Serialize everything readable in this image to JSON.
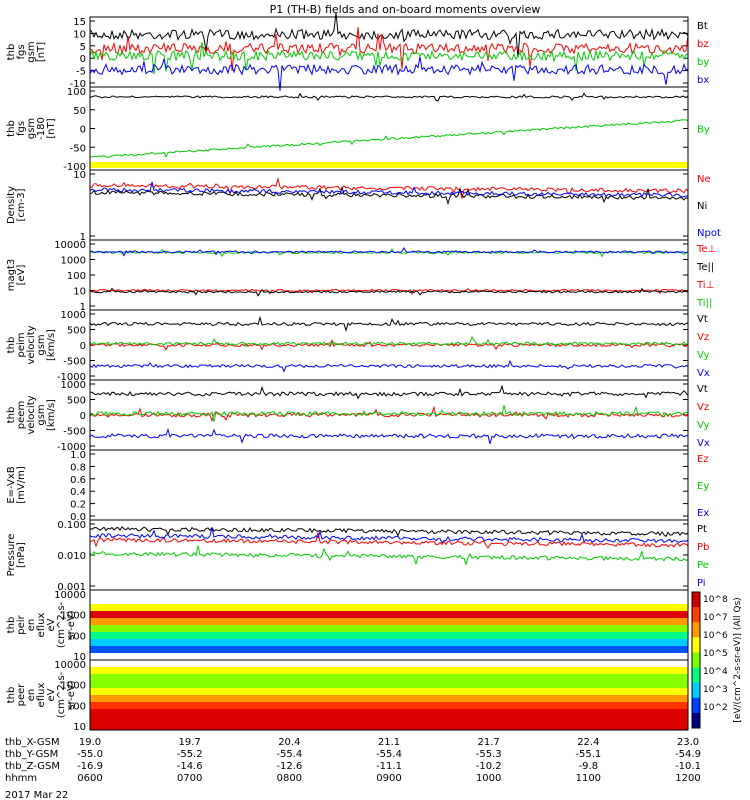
{
  "title": "P1 (TH-B) fields and on-board moments overview",
  "panels": [
    {
      "id": "fgs",
      "ylabel": [
        "thb",
        "fgs",
        "gsm",
        "[nT]"
      ],
      "ticks": [
        "15",
        "10",
        "5",
        "0",
        "-5",
        "-10"
      ],
      "legend": [
        {
          "text": "Bt",
          "color": "#000000"
        },
        {
          "text": "bz",
          "color": "#ff0000"
        },
        {
          "text": "by",
          "color": "#00cc00"
        },
        {
          "text": "bx",
          "color": "#0000ff"
        }
      ]
    },
    {
      "id": "fgs2",
      "ylabel": [
        "thb",
        "fgs",
        "gsm",
        "-180",
        "[nT]"
      ],
      "ticks": [
        "100",
        "50",
        "0",
        "-50",
        "-100"
      ],
      "legend": [
        {
          "text": "By",
          "color": "#00cc00"
        }
      ]
    },
    {
      "id": "density",
      "ylabel": [
        "Density",
        "[cm-3]"
      ],
      "ticks": [
        "10",
        "1"
      ],
      "legend": [
        {
          "text": "Ne",
          "color": "#ff0000"
        },
        {
          "text": "Ni",
          "color": "#000000"
        },
        {
          "text": "Npot",
          "color": "#0000ff"
        }
      ]
    },
    {
      "id": "temp",
      "ylabel": [
        "magt3",
        "[eV]"
      ],
      "ticks": [
        "10000",
        "1000",
        "100",
        "10",
        "1"
      ],
      "legend": [
        {
          "text": "Te⊥",
          "color": "#ff0000"
        },
        {
          "text": "Te||",
          "color": "#000000"
        },
        {
          "text": "Ti⊥",
          "color": "#ff0000"
        },
        {
          "text": "Ti||",
          "color": "#00cc00"
        }
      ]
    },
    {
      "id": "peim",
      "ylabel": [
        "thb",
        "peim",
        "velocity",
        "gsm",
        "[km/s]"
      ],
      "ticks": [
        "1000",
        "500",
        "0",
        "-500",
        "-1000"
      ],
      "legend": [
        {
          "text": "Vt",
          "color": "#000000"
        },
        {
          "text": "Vz",
          "color": "#ff0000"
        },
        {
          "text": "Vy",
          "color": "#00cc00"
        },
        {
          "text": "Vx",
          "color": "#0000ff"
        }
      ]
    },
    {
      "id": "peem",
      "ylabel": [
        "thb",
        "peem",
        "velocity",
        "gsm",
        "[km/s]"
      ],
      "ticks": [
        "1000",
        "500",
        "0",
        "-500",
        "-1000"
      ],
      "legend": [
        {
          "text": "Vt",
          "color": "#000000"
        },
        {
          "text": "Vz",
          "color": "#ff0000"
        },
        {
          "text": "Vy",
          "color": "#00cc00"
        },
        {
          "text": "Vx",
          "color": "#0000ff"
        }
      ]
    },
    {
      "id": "efield",
      "ylabel": [
        "E=-VxB",
        "[mV/m]"
      ],
      "ticks": [
        "1.0",
        "0.8",
        "0.6",
        "0.4",
        "0.2",
        "0.0"
      ],
      "legend": [
        {
          "text": "Ez",
          "color": "#ff0000"
        },
        {
          "text": "Ey",
          "color": "#00cc00"
        },
        {
          "text": "Ex",
          "color": "#0000ff"
        }
      ]
    },
    {
      "id": "pressure",
      "ylabel": [
        "Pressure",
        "[nPa]"
      ],
      "ticks": [
        "0.100",
        "0.010",
        "0.001"
      ],
      "legend": [
        {
          "text": "Pt",
          "color": "#000000"
        },
        {
          "text": "Pb",
          "color": "#ff0000"
        },
        {
          "text": "Pe",
          "color": "#00cc00"
        },
        {
          "text": "Pi",
          "color": "#0000ff"
        }
      ]
    },
    {
      "id": "peir",
      "ylabel": [
        "thb",
        "peir",
        "en",
        "eflux",
        "eV",
        "(cm^2-s-",
        "sr-eV)"
      ],
      "ticks": [
        "10000",
        "1000",
        "100",
        "10"
      ],
      "legend": []
    },
    {
      "id": "peer",
      "ylabel": [
        "thb",
        "peer",
        "en",
        "eflux",
        "eV",
        "(cm^2-s-",
        "sr-eV)"
      ],
      "ticks": [
        "10000",
        "1000",
        "100",
        "10"
      ],
      "legend": []
    }
  ],
  "colorbar": {
    "ticks": [
      "10^8",
      "10^7",
      "10^6",
      "10^5",
      "10^4",
      "10^3",
      "10^2"
    ],
    "label": "[eV/(cm^2-s-sr-eV)] (All Qs)"
  },
  "xaxis": {
    "rows": [
      {
        "label": "thb_X-GSM",
        "values": [
          "19.0",
          "19.7",
          "20.4",
          "21.1",
          "21.7",
          "22.4",
          "23.0"
        ]
      },
      {
        "label": "thb_Y-GSM",
        "values": [
          "-55.0",
          "-55.2",
          "-55.4",
          "-55.4",
          "-55.3",
          "-55.1",
          "-54.9"
        ]
      },
      {
        "label": "thb_Z-GSM",
        "values": [
          "-16.9",
          "-14.6",
          "-12.6",
          "-11.1",
          "-10.2",
          "-9.8",
          "-10.1"
        ]
      },
      {
        "label": "hhmm",
        "values": [
          "0600",
          "0700",
          "0800",
          "0900",
          "1000",
          "1100",
          "1200"
        ]
      }
    ],
    "date": "2017 Mar 22"
  },
  "chart_data": {
    "type": "line",
    "title": "P1 (TH-B) fields and on-board moments overview",
    "x": [
      "0600",
      "0700",
      "0800",
      "0900",
      "1000",
      "1100",
      "1200"
    ],
    "xlabel": "hhmm",
    "date": "2017 Mar 22",
    "series": [
      {
        "name": "Bt",
        "values": [
          8,
          8,
          8.5,
          8.5,
          8,
          7.5,
          6
        ]
      },
      {
        "name": "bz",
        "values": [
          3,
          2,
          3,
          1,
          -1,
          0,
          -1
        ]
      },
      {
        "name": "by",
        "values": [
          2,
          3,
          1,
          3,
          2,
          4,
          2
        ]
      },
      {
        "name": "bx",
        "values": [
          -3,
          -2,
          -3,
          -2,
          -3,
          -2,
          -2
        ]
      },
      {
        "name": "Ne",
        "values": [
          6,
          6.5,
          7,
          6,
          6.5,
          5,
          3
        ]
      },
      {
        "name": "Ni",
        "values": [
          4.5,
          4.8,
          5,
          4.2,
          4.5,
          3.5,
          2.2
        ]
      },
      {
        "name": "Vt",
        "values": [
          700,
          700,
          700,
          700,
          700,
          700,
          700
        ]
      },
      {
        "name": "Vx",
        "values": [
          -600,
          -600,
          -600,
          -600,
          -600,
          -600,
          -600
        ]
      },
      {
        "name": "Pt",
        "values": [
          0.07,
          0.07,
          0.07,
          0.07,
          0.07,
          0.05,
          0.04
        ]
      },
      {
        "name": "Pi",
        "values": [
          0.04,
          0.04,
          0.045,
          0.04,
          0.04,
          0.025,
          0.02
        ]
      },
      {
        "name": "Pb",
        "values": [
          0.025,
          0.02,
          0.025,
          0.02,
          0.02,
          0.02,
          0.015
        ]
      },
      {
        "name": "Pe",
        "values": [
          0.011,
          0.012,
          0.012,
          0.011,
          0.011,
          0.008,
          0.006
        ]
      }
    ]
  }
}
